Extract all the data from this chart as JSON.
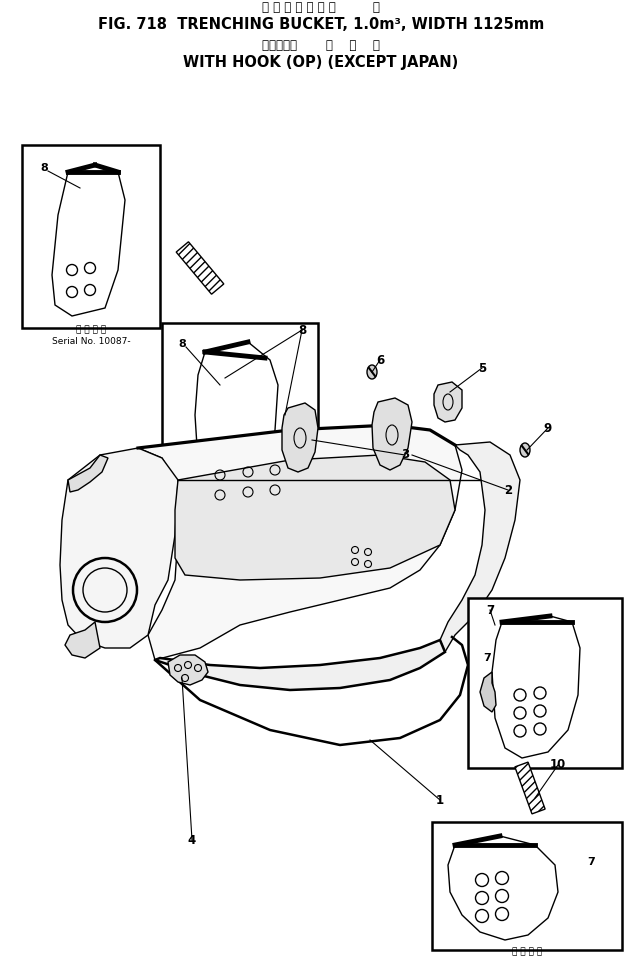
{
  "title_line1": "軽 作 業 バ ケ ッ ト         幅",
  "title_line2": "FIG. 718  TRENCHING BUCKET, 1.0m³, WIDTH 1125mm",
  "title_line3": "フック付き       海    外    向",
  "title_line4": "WITH HOOK (OP) (EXCEPT JAPAN)",
  "serial_text1": "適 用 予 選",
  "serial_text2": "Serial No. 10087-",
  "bg_color": "#ffffff",
  "line_color": "#000000",
  "fig_width": 6.43,
  "fig_height": 9.59,
  "dpi": 100
}
